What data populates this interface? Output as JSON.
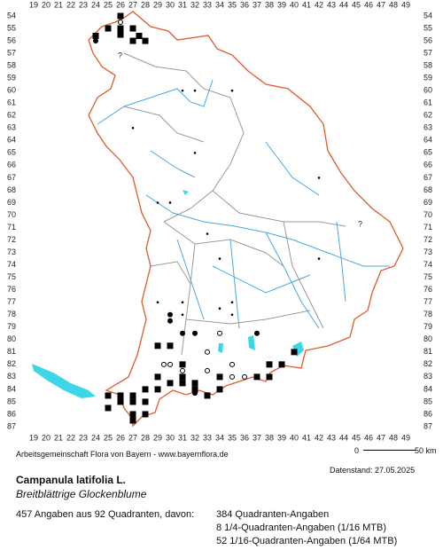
{
  "map": {
    "columns": [
      19,
      20,
      21,
      22,
      23,
      24,
      25,
      26,
      27,
      28,
      29,
      30,
      31,
      32,
      33,
      34,
      35,
      36,
      37,
      38,
      39,
      40,
      41,
      42,
      43,
      44,
      45,
      46,
      47,
      48,
      49
    ],
    "rows": [
      54,
      55,
      56,
      57,
      58,
      59,
      60,
      61,
      62,
      63,
      64,
      65,
      66,
      67,
      68,
      69,
      70,
      71,
      72,
      73,
      74,
      75,
      76,
      77,
      78,
      79,
      80,
      81,
      82,
      83,
      84,
      85,
      86,
      87
    ],
    "uncertain_marker": "?"
  },
  "footer": {
    "source": "Arbeitsgemeinschaft Flora von Bayern - www.bayernflora.de",
    "scale_start": "0",
    "scale_end": "50 km",
    "date": "Datenstand: 27.05.2025"
  },
  "species": {
    "name": "Campanula latifolia L.",
    "common_name": "Breitblättrige Glockenblume"
  },
  "summary": {
    "total": "457 Angaben aus 92 Quadranten, davon:",
    "breakdown": [
      "384 Quadranten-Angaben",
      "8 1/4-Quadranten-Angaben (1/16 MTB)",
      "52 1/16-Quadranten-Angaben (1/64 MTB)"
    ]
  }
}
